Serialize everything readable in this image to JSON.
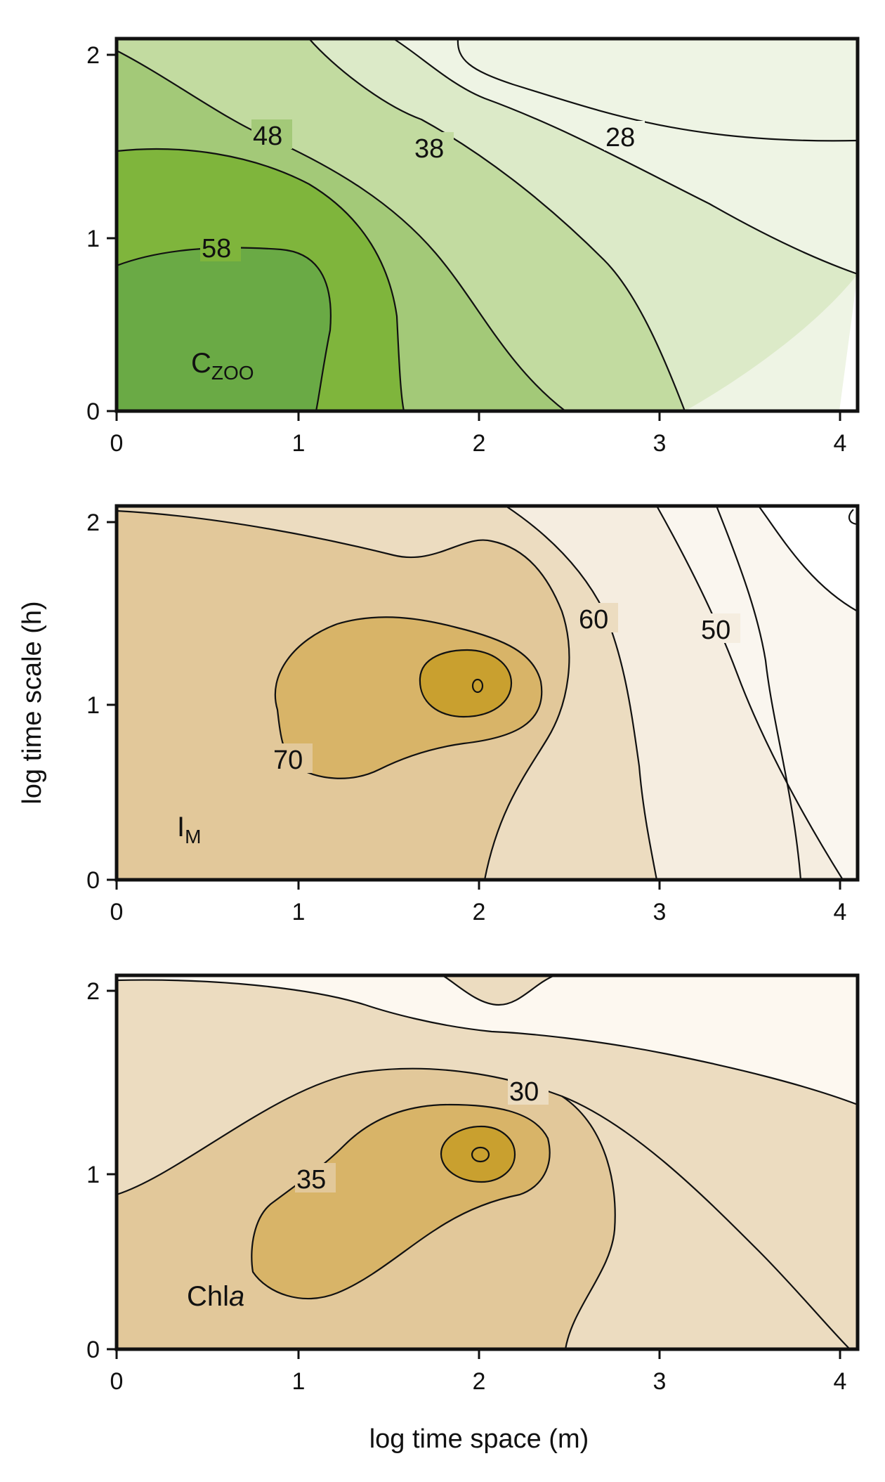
{
  "chart_data": [
    {
      "type": "contour",
      "variable": "C",
      "variable_subscript": "ZOO",
      "colors": [
        "#6aaa45",
        "#7fb53c",
        "#a3c978",
        "#c2dba0",
        "#dceac8",
        "#eef4e4",
        "#ffffff"
      ],
      "contour_labels": [
        "48",
        "38",
        "28",
        "58"
      ],
      "levels": [
        58,
        48,
        38,
        28
      ],
      "xlim": [
        0,
        4.1
      ],
      "ylim": [
        0,
        2.1
      ],
      "x_ticks": [
        "0",
        "1",
        "2",
        "3",
        "4"
      ],
      "y_ticks": [
        "0",
        "1",
        "2"
      ]
    },
    {
      "type": "contour",
      "variable": "I",
      "variable_subscript": "M",
      "colors": [
        "#c9a02f",
        "#d8b468",
        "#e2c89a",
        "#ecdcc0",
        "#f5ede0",
        "#faf6ef",
        "#ffffff"
      ],
      "contour_labels": [
        "60",
        "50",
        "70"
      ],
      "levels": [
        70,
        60,
        50
      ],
      "xlim": [
        0,
        4.1
      ],
      "ylim": [
        0,
        2.1
      ],
      "x_ticks": [
        "0",
        "1",
        "2",
        "3",
        "4"
      ],
      "y_ticks": [
        "0",
        "1",
        "2"
      ]
    },
    {
      "type": "contour",
      "variable": "Chl",
      "variable_italic": "a",
      "colors": [
        "#c9a02f",
        "#d8b468",
        "#e2c89a",
        "#ecdcc0",
        "#fdf8f0"
      ],
      "contour_labels": [
        "30",
        "35"
      ],
      "levels": [
        35,
        30
      ],
      "xlim": [
        0,
        4.1
      ],
      "ylim": [
        0,
        2.1
      ],
      "x_ticks": [
        "0",
        "1",
        "2",
        "3",
        "4"
      ],
      "y_ticks": [
        "0",
        "1",
        "2"
      ],
      "xlabel": "log time space (m)"
    }
  ],
  "ylabel": "log time scale (h)"
}
